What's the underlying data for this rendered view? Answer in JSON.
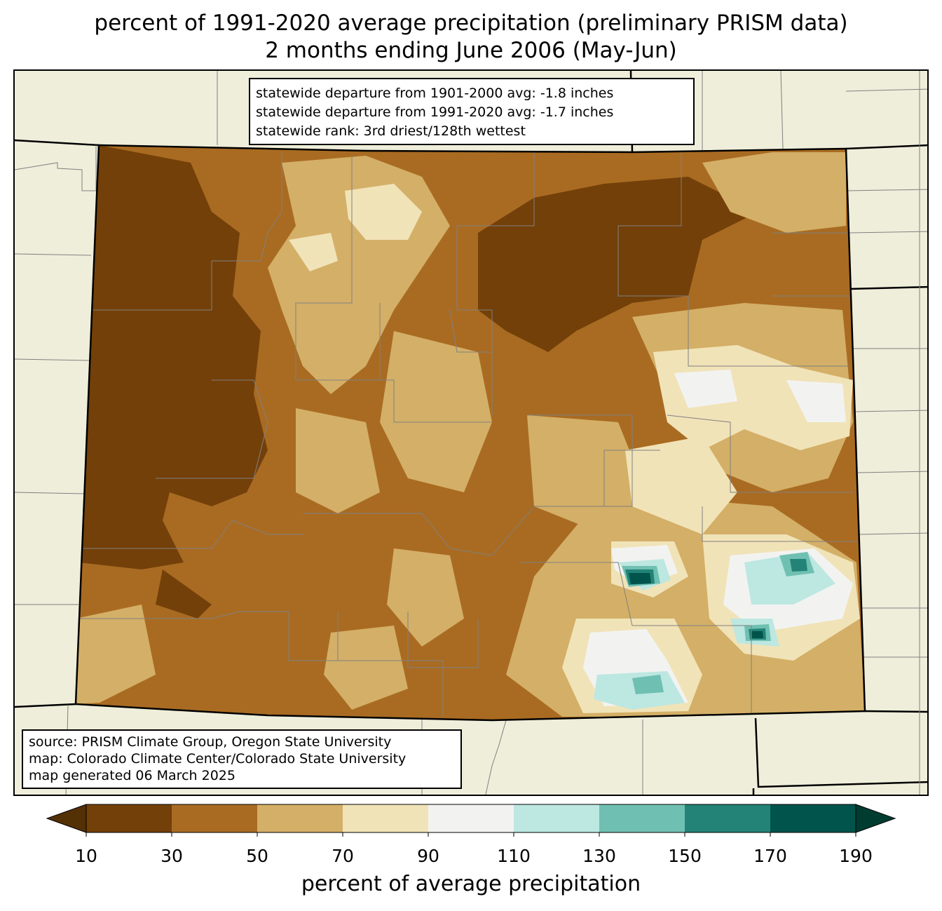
{
  "title": {
    "line1": "percent of 1991-2020 average precipitation (preliminary PRISM data)",
    "line2": "2 months ending June 2006 (May-Jun)"
  },
  "stats": {
    "line1": "statewide departure from 1901-2000 avg: -1.8 inches",
    "line2": "statewide departure from 1991-2020 avg: -1.7 inches",
    "line3": "statewide rank: 3rd driest/128th wettest"
  },
  "source": {
    "line1": "source: PRISM Climate Group, Oregon State University",
    "line2": "map: Colorado Climate Center/Colorado State University",
    "line3": "map generated 06 March 2025"
  },
  "legend": {
    "label": "percent of average precipitation",
    "ticks": [
      "10",
      "30",
      "50",
      "70",
      "90",
      "110",
      "130",
      "150",
      "170",
      "190"
    ],
    "colors": [
      "#734009",
      "#a96b22",
      "#d4af67",
      "#f1e3b8",
      "#f2f3f1",
      "#bde7e1",
      "#6fc0b2",
      "#228376",
      "#00544b"
    ],
    "under_color": "#543005",
    "over_color": "#003c30"
  },
  "map_colors": {
    "background": "#efeedb",
    "state_border": "#000000",
    "county_lines": "#808080"
  }
}
